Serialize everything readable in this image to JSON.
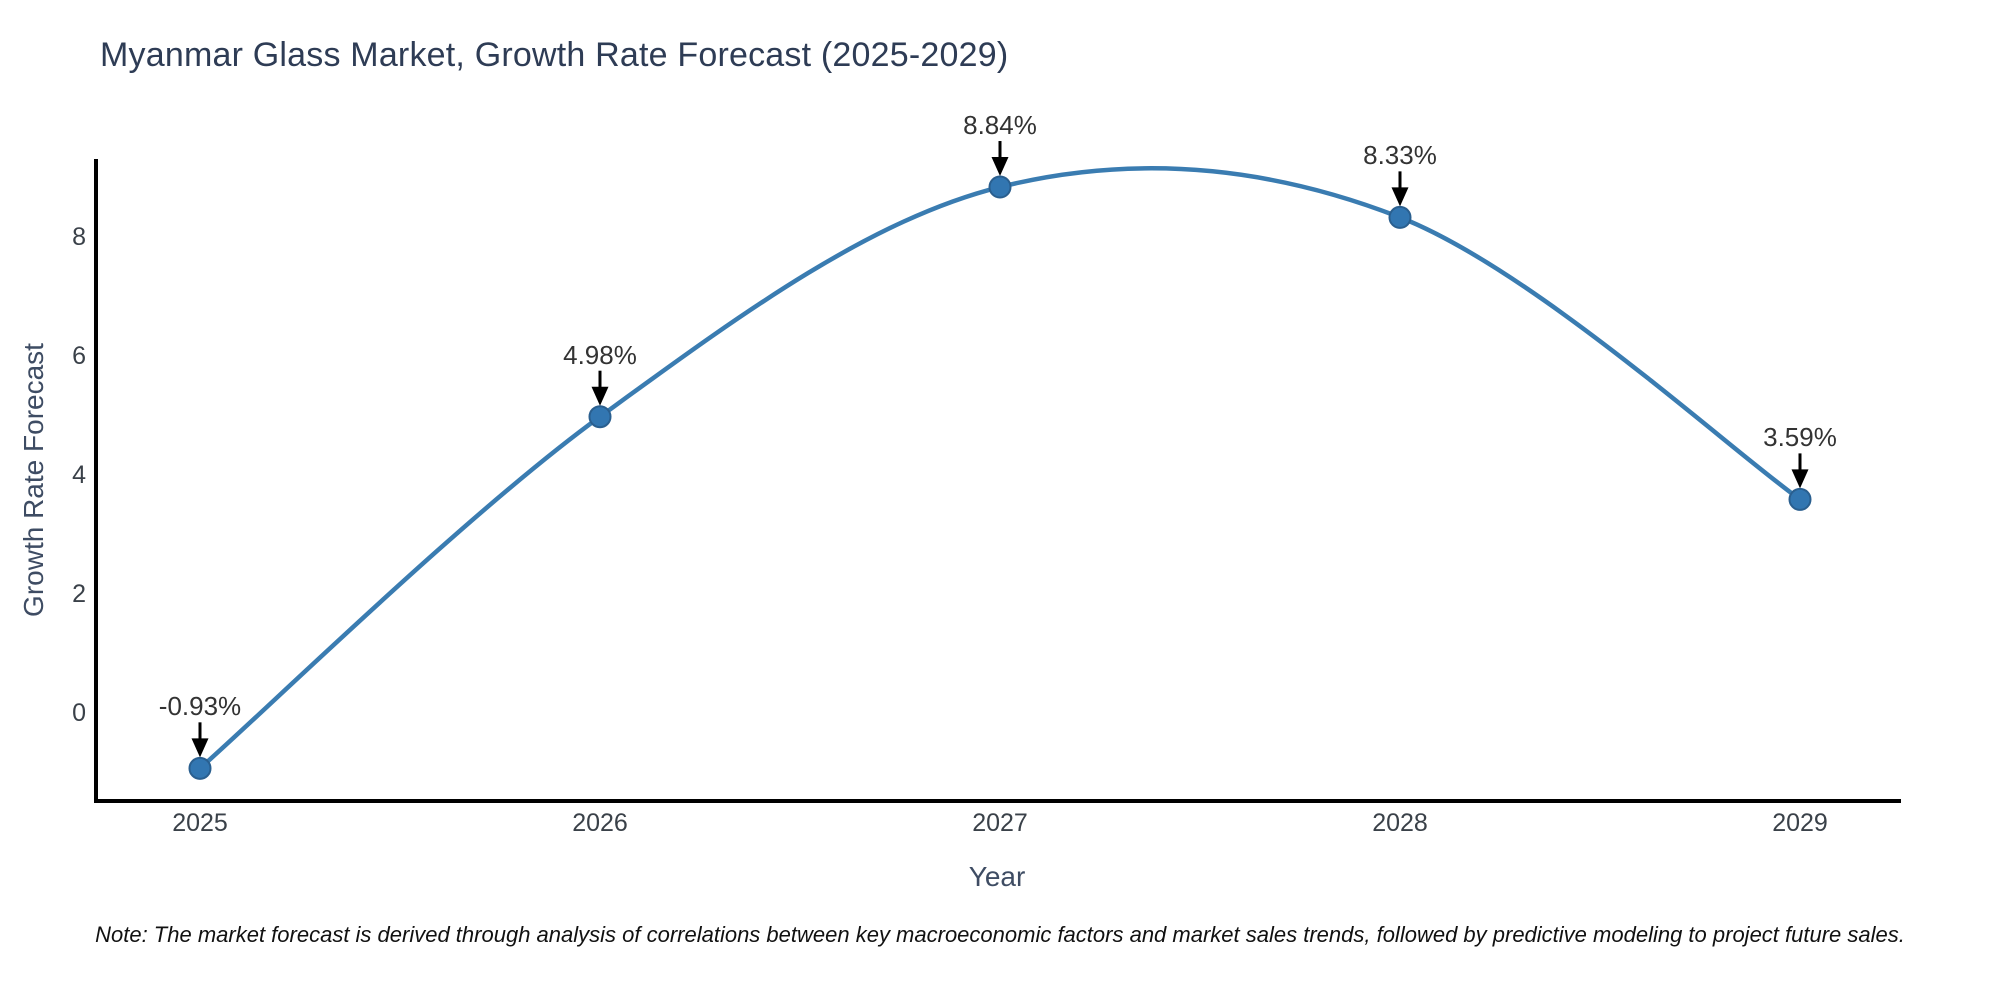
{
  "title": "Myanmar Glass Market, Growth Rate Forecast (2025-2029)",
  "note": "Note: The market forecast is derived through analysis of correlations between key macroeconomic factors and market sales trends, followed by predictive modeling to project future sales.",
  "chart_data": {
    "type": "line",
    "curve": "spline",
    "title": "Myanmar Glass Market, Growth Rate Forecast (2025-2029)",
    "xlabel": "Year",
    "ylabel": "Growth Rate Forecast",
    "x": [
      2025,
      2026,
      2027,
      2028,
      2029
    ],
    "values": [
      -0.93,
      4.98,
      8.84,
      8.33,
      3.59
    ],
    "point_labels": [
      "-0.93%",
      "4.98%",
      "8.84%",
      "8.33%",
      "3.59%"
    ],
    "x_ticks": [
      "2025",
      "2026",
      "2027",
      "2028",
      "2029"
    ],
    "y_ticks": [
      "0",
      "2",
      "4",
      "6",
      "8"
    ],
    "y_tick_values": [
      0,
      2,
      4,
      6,
      8
    ],
    "ylim": [
      -1.42,
      9.33
    ],
    "grid": false,
    "legend": "none",
    "colors": {
      "line": "#3a7cb1",
      "marker_fill": "#3276b1",
      "marker_edge": "#2a5f8f",
      "spine": "#000000",
      "arrow": "#000000",
      "title_text": "#2e3c55",
      "axis_label_text": "#3e4c63",
      "tick_text": "#3a4149",
      "annotation_text": "#333333",
      "background": "#ffffff"
    }
  }
}
